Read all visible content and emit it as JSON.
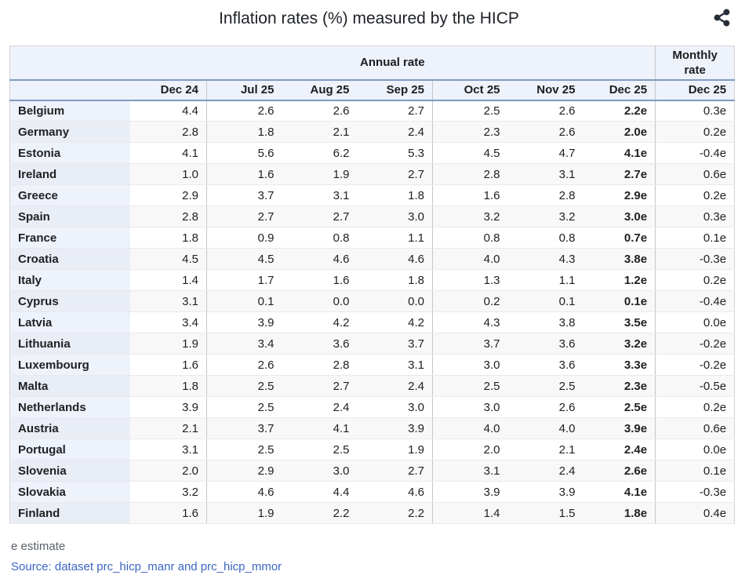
{
  "title": "Inflation rates (%) measured by the HICP",
  "header": {
    "share_icon": "share-icon"
  },
  "chart_data": {
    "type": "table",
    "title": "Inflation rates (%) measured by the HICP",
    "group_headers": {
      "annual": "Annual rate",
      "monthly": "Monthly rate"
    },
    "month_columns": [
      "Dec 24",
      "Jul 25",
      "Aug 25",
      "Sep 25",
      "Oct 25",
      "Nov 25",
      "Dec 25"
    ],
    "monthly_column": "Dec 25",
    "rows": [
      {
        "country": "Belgium",
        "annual": [
          "4.4",
          "2.6",
          "2.6",
          "2.7",
          "2.5",
          "2.6",
          "2.2e"
        ],
        "monthly": "0.3e"
      },
      {
        "country": "Germany",
        "annual": [
          "2.8",
          "1.8",
          "2.1",
          "2.4",
          "2.3",
          "2.6",
          "2.0e"
        ],
        "monthly": "0.2e"
      },
      {
        "country": "Estonia",
        "annual": [
          "4.1",
          "5.6",
          "6.2",
          "5.3",
          "4.5",
          "4.7",
          "4.1e"
        ],
        "monthly": "-0.4e"
      },
      {
        "country": "Ireland",
        "annual": [
          "1.0",
          "1.6",
          "1.9",
          "2.7",
          "2.8",
          "3.1",
          "2.7e"
        ],
        "monthly": "0.6e"
      },
      {
        "country": "Greece",
        "annual": [
          "2.9",
          "3.7",
          "3.1",
          "1.8",
          "1.6",
          "2.8",
          "2.9e"
        ],
        "monthly": "0.2e"
      },
      {
        "country": "Spain",
        "annual": [
          "2.8",
          "2.7",
          "2.7",
          "3.0",
          "3.2",
          "3.2",
          "3.0e"
        ],
        "monthly": "0.3e"
      },
      {
        "country": "France",
        "annual": [
          "1.8",
          "0.9",
          "0.8",
          "1.1",
          "0.8",
          "0.8",
          "0.7e"
        ],
        "monthly": "0.1e"
      },
      {
        "country": "Croatia",
        "annual": [
          "4.5",
          "4.5",
          "4.6",
          "4.6",
          "4.0",
          "4.3",
          "3.8e"
        ],
        "monthly": "-0.3e"
      },
      {
        "country": "Italy",
        "annual": [
          "1.4",
          "1.7",
          "1.6",
          "1.8",
          "1.3",
          "1.1",
          "1.2e"
        ],
        "monthly": "0.2e"
      },
      {
        "country": "Cyprus",
        "annual": [
          "3.1",
          "0.1",
          "0.0",
          "0.0",
          "0.2",
          "0.1",
          "0.1e"
        ],
        "monthly": "-0.4e"
      },
      {
        "country": "Latvia",
        "annual": [
          "3.4",
          "3.9",
          "4.2",
          "4.2",
          "4.3",
          "3.8",
          "3.5e"
        ],
        "monthly": "0.0e"
      },
      {
        "country": "Lithuania",
        "annual": [
          "1.9",
          "3.4",
          "3.6",
          "3.7",
          "3.7",
          "3.6",
          "3.2e"
        ],
        "monthly": "-0.2e"
      },
      {
        "country": "Luxembourg",
        "annual": [
          "1.6",
          "2.6",
          "2.8",
          "3.1",
          "3.0",
          "3.6",
          "3.3e"
        ],
        "monthly": "-0.2e"
      },
      {
        "country": "Malta",
        "annual": [
          "1.8",
          "2.5",
          "2.7",
          "2.4",
          "2.5",
          "2.5",
          "2.3e"
        ],
        "monthly": "-0.5e"
      },
      {
        "country": "Netherlands",
        "annual": [
          "3.9",
          "2.5",
          "2.4",
          "3.0",
          "3.0",
          "2.6",
          "2.5e"
        ],
        "monthly": "0.2e"
      },
      {
        "country": "Austria",
        "annual": [
          "2.1",
          "3.7",
          "4.1",
          "3.9",
          "4.0",
          "4.0",
          "3.9e"
        ],
        "monthly": "0.6e"
      },
      {
        "country": "Portugal",
        "annual": [
          "3.1",
          "2.5",
          "2.5",
          "1.9",
          "2.0",
          "2.1",
          "2.4e"
        ],
        "monthly": "0.0e"
      },
      {
        "country": "Slovenia",
        "annual": [
          "2.0",
          "2.9",
          "3.0",
          "2.7",
          "3.1",
          "2.4",
          "2.6e"
        ],
        "monthly": "0.1e"
      },
      {
        "country": "Slovakia",
        "annual": [
          "3.2",
          "4.6",
          "4.4",
          "4.6",
          "3.9",
          "3.9",
          "4.1e"
        ],
        "monthly": "-0.3e"
      },
      {
        "country": "Finland",
        "annual": [
          "1.6",
          "1.9",
          "2.2",
          "2.2",
          "1.4",
          "1.5",
          "1.8e"
        ],
        "monthly": "0.4e"
      }
    ],
    "layout": {
      "flash_column_bold": true,
      "estimate_suffix": "e"
    }
  },
  "footer": {
    "footnote": "e estimate",
    "source_text": "Source: dataset prc_hicp_manr and prc_hicp_mmor"
  },
  "colors": {
    "header_bg": "#eef2fa",
    "rule_blue": "#7e9bc0",
    "row_alt": "#f8f8f8",
    "country_bg": "#edf2fb",
    "country_bg_alt": "#e9edf6",
    "link_blue": "#3b66c4",
    "text": "#202122",
    "muted_gray": "#596068"
  }
}
